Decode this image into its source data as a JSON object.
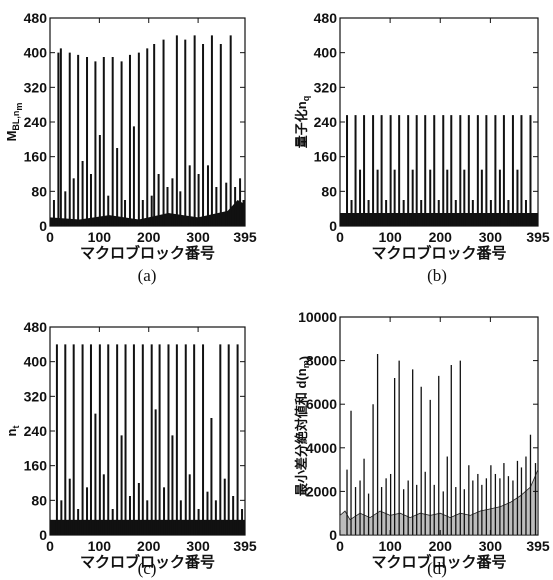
{
  "figure": {
    "panels": [
      {
        "id": "a",
        "label": "(a)",
        "ylabel": "M_BL,n_m",
        "xlabel": "マクロブロック番号"
      },
      {
        "id": "b",
        "label": "(b)",
        "ylabel": "量子化n_q",
        "xlabel": "マクロブロック番号"
      },
      {
        "id": "c",
        "label": "(c)",
        "ylabel": "n_t",
        "xlabel": "マクロブロック番号"
      },
      {
        "id": "d",
        "label": "(d)",
        "ylabel": "最小差分絶対値和 d(n_m)",
        "xlabel": "マクロブロック番号"
      }
    ]
  },
  "chart_data": [
    {
      "id": "a",
      "type": "bar",
      "title": "",
      "xlabel": "マクロブロック番号",
      "ylabel": "M_BL,n_m",
      "xlim": [
        0,
        395
      ],
      "ylim": [
        0,
        480
      ],
      "xticks": [
        0,
        100,
        200,
        300,
        395
      ],
      "yticks": [
        0,
        80,
        160,
        240,
        320,
        400,
        480
      ],
      "baseline_values": [
        [
          0,
          20
        ],
        [
          60,
          15
        ],
        [
          120,
          25
        ],
        [
          180,
          15
        ],
        [
          240,
          30
        ],
        [
          300,
          20
        ],
        [
          360,
          35
        ],
        [
          380,
          60
        ],
        [
          395,
          50
        ]
      ],
      "spikes": {
        "x": [
          8,
          17,
          22,
          31,
          40,
          48,
          57,
          66,
          75,
          83,
          92,
          101,
          109,
          118,
          127,
          136,
          145,
          152,
          162,
          170,
          180,
          188,
          197,
          206,
          211,
          220,
          230,
          238,
          248,
          257,
          264,
          274,
          283,
          293,
          301,
          310,
          320,
          328,
          337,
          346,
          357,
          366,
          375,
          385,
          392
        ],
        "values": [
          60,
          400,
          410,
          80,
          400,
          110,
          395,
          150,
          390,
          120,
          380,
          210,
          390,
          70,
          390,
          180,
          380,
          60,
          395,
          230,
          400,
          60,
          410,
          70,
          420,
          120,
          430,
          90,
          110,
          440,
          80,
          430,
          140,
          440,
          120,
          420,
          140,
          440,
          90,
          420,
          100,
          440,
          90,
          110,
          60
        ]
      }
    },
    {
      "id": "b",
      "type": "bar",
      "title": "",
      "xlabel": "マクロブロック番号",
      "ylabel": "量子化n_q",
      "xlim": [
        0,
        395
      ],
      "ylim": [
        0,
        480
      ],
      "xticks": [
        0,
        100,
        200,
        300,
        395
      ],
      "yticks": [
        0,
        80,
        160,
        240,
        320,
        400,
        480
      ],
      "baseline_level": 30,
      "spikes": {
        "x": [
          14,
          23,
          31,
          40,
          48,
          57,
          66,
          75,
          83,
          92,
          101,
          109,
          118,
          127,
          136,
          145,
          153,
          162,
          170,
          180,
          188,
          197,
          206,
          214,
          222,
          231,
          240,
          248,
          257,
          265,
          275,
          283,
          292,
          301,
          310,
          319,
          327,
          336,
          345,
          354,
          362,
          371,
          380
        ],
        "values": [
          256,
          60,
          256,
          130,
          256,
          60,
          256,
          130,
          256,
          60,
          256,
          130,
          256,
          60,
          256,
          130,
          256,
          60,
          256,
          130,
          256,
          60,
          256,
          130,
          256,
          60,
          256,
          130,
          256,
          60,
          256,
          130,
          256,
          60,
          256,
          130,
          256,
          60,
          256,
          130,
          256,
          60,
          256
        ]
      }
    },
    {
      "id": "c",
      "type": "bar",
      "title": "",
      "xlabel": "マクロブロック番号",
      "ylabel": "n_t",
      "xlim": [
        0,
        395
      ],
      "ylim": [
        0,
        480
      ],
      "xticks": [
        0,
        100,
        200,
        300,
        395
      ],
      "yticks": [
        0,
        80,
        160,
        240,
        320,
        400,
        480
      ],
      "baseline_level": 35,
      "spikes": {
        "x": [
          14,
          23,
          31,
          40,
          48,
          57,
          66,
          75,
          83,
          92,
          101,
          109,
          118,
          127,
          136,
          145,
          153,
          162,
          170,
          180,
          188,
          197,
          206,
          214,
          222,
          231,
          240,
          248,
          257,
          265,
          275,
          283,
          292,
          301,
          310,
          319,
          327,
          336,
          345,
          354,
          362,
          371,
          380,
          389
        ],
        "values": [
          440,
          80,
          440,
          130,
          440,
          60,
          440,
          110,
          440,
          280,
          440,
          140,
          440,
          60,
          440,
          230,
          440,
          90,
          440,
          120,
          440,
          80,
          440,
          290,
          440,
          110,
          440,
          230,
          440,
          80,
          440,
          140,
          440,
          60,
          440,
          100,
          270,
          80,
          440,
          130,
          440,
          90,
          440,
          60
        ]
      }
    },
    {
      "id": "d",
      "type": "area",
      "title": "",
      "xlabel": "マクロブロック番号",
      "ylabel": "最小差分絶対値和 d(n_m)",
      "xlim": [
        0,
        395
      ],
      "ylim": [
        0,
        10000
      ],
      "xticks": [
        0,
        100,
        200,
        300,
        395
      ],
      "yticks": [
        0,
        2000,
        4000,
        6000,
        8000,
        10000
      ],
      "ytick_labels": [
        "0",
        "2000",
        "4000",
        "6000",
        "8000",
        "10000"
      ],
      "baseline": {
        "x": [
          0,
          10,
          20,
          40,
          60,
          80,
          100,
          120,
          140,
          160,
          180,
          200,
          220,
          240,
          260,
          280,
          300,
          320,
          340,
          360,
          380,
          395
        ],
        "values": [
          900,
          1100,
          700,
          1000,
          800,
          1100,
          900,
          1000,
          800,
          1000,
          900,
          1000,
          800,
          1000,
          900,
          1100,
          1200,
          1300,
          1500,
          1800,
          2200,
          3000
        ]
      },
      "spikes": {
        "x": [
          14,
          22,
          31,
          40,
          48,
          57,
          66,
          75,
          83,
          92,
          101,
          109,
          118,
          127,
          136,
          145,
          153,
          162,
          170,
          180,
          188,
          197,
          206,
          214,
          222,
          231,
          240,
          248,
          257,
          265,
          275,
          283,
          292,
          301,
          310,
          319,
          327,
          336,
          345,
          354,
          362,
          371,
          380,
          390
        ],
        "values": [
          3000,
          5700,
          2200,
          2500,
          3500,
          1900,
          6000,
          8300,
          2200,
          2600,
          2800,
          7200,
          8000,
          2100,
          2500,
          7600,
          2300,
          6800,
          2900,
          6200,
          2300,
          7300,
          2000,
          3600,
          7800,
          2200,
          8000,
          2100,
          3200,
          2500,
          2800,
          2300,
          2600,
          3200,
          2800,
          2600,
          3300,
          2700,
          2500,
          3400,
          3100,
          3600,
          4600,
          3300
        ]
      }
    }
  ]
}
